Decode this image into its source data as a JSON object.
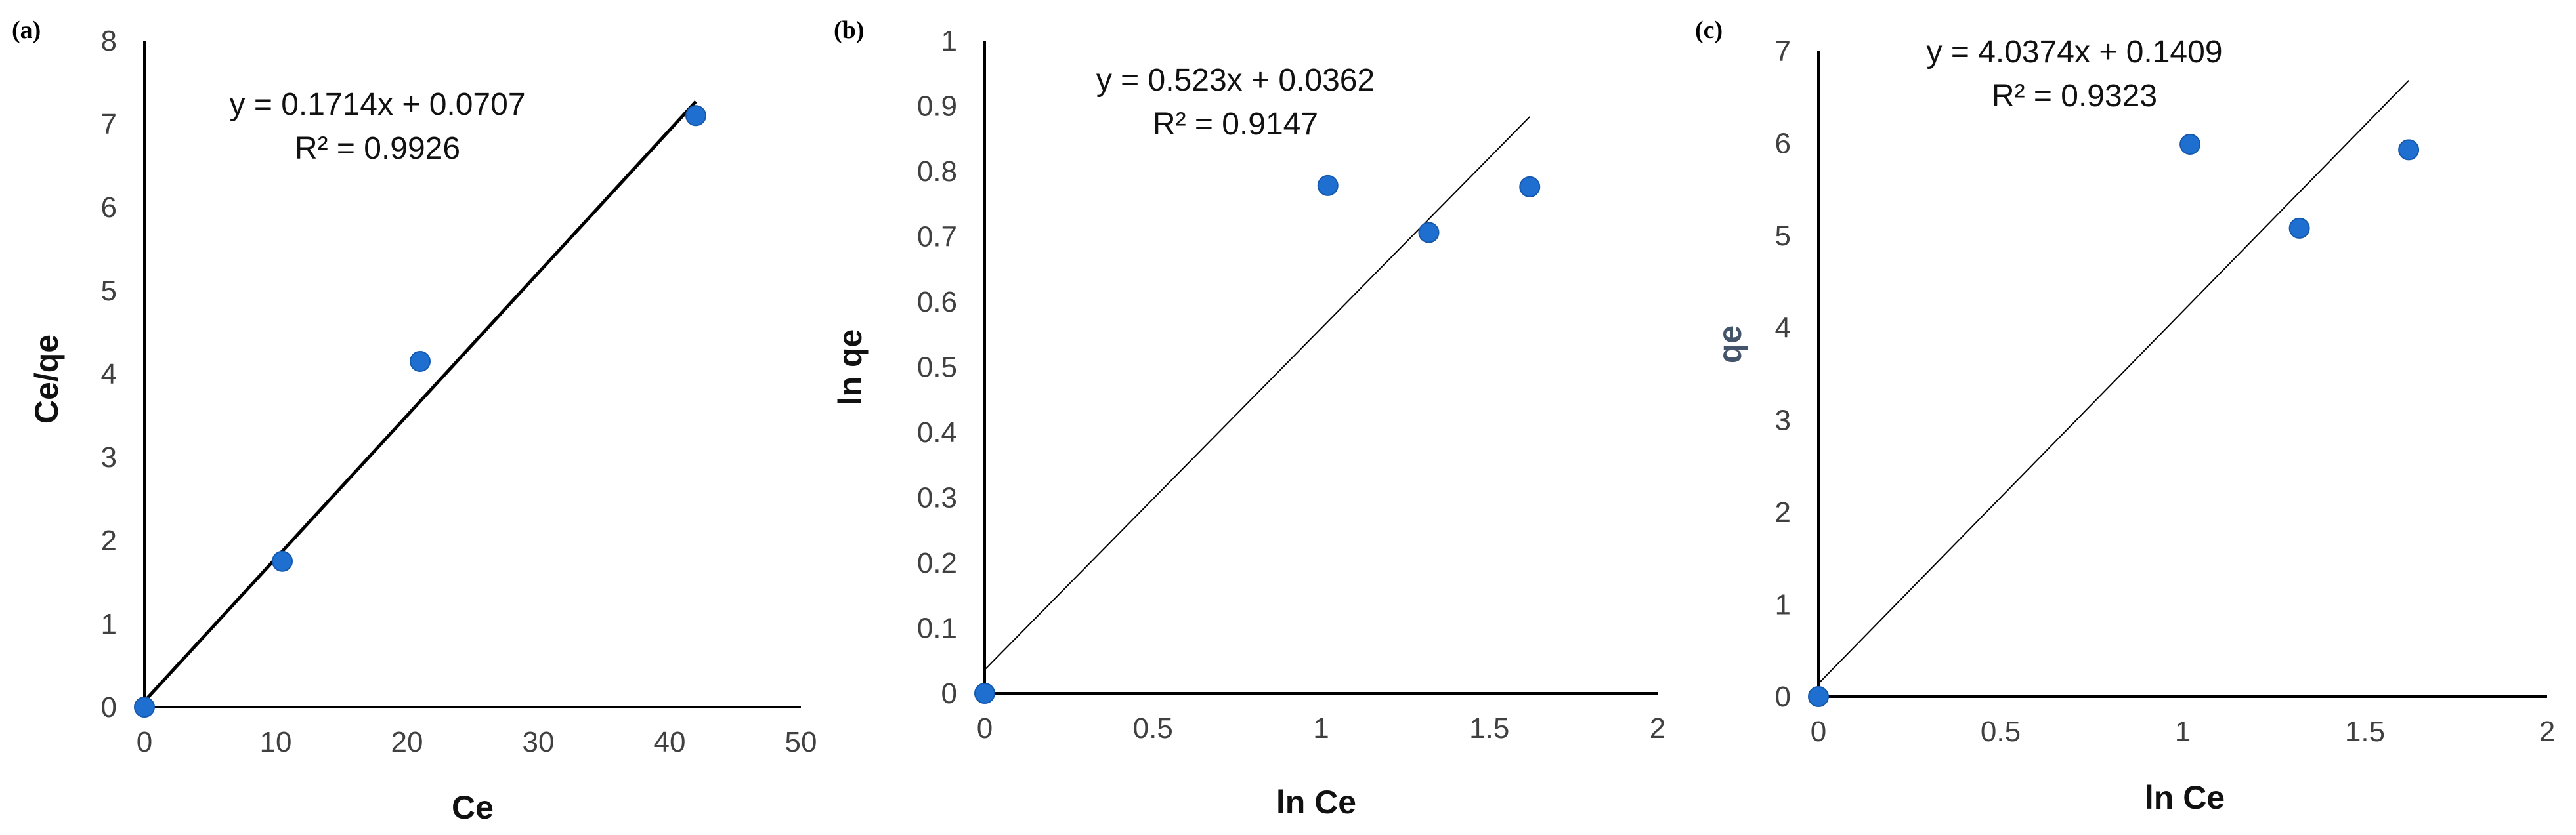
{
  "colors": {
    "point": "#1f6fd1",
    "point_edge": "#1559ad",
    "axis": "#000000",
    "trendline": "#000000",
    "tick_text": "#404040"
  },
  "chart_data": [
    {
      "type": "scatter",
      "panel_label": "(a)",
      "xlabel": "Ce",
      "ylabel": "Ce/qe",
      "xlim": [
        0,
        50
      ],
      "ylim": [
        0,
        8
      ],
      "xticks": [
        0,
        10,
        20,
        30,
        40,
        50
      ],
      "yticks": [
        0,
        1,
        2,
        3,
        4,
        5,
        6,
        7,
        8
      ],
      "xtick_labels": [
        "0",
        "10",
        "20",
        "30",
        "40",
        "50"
      ],
      "ytick_labels": [
        "0",
        "1",
        "2",
        "3",
        "4",
        "5",
        "6",
        "7",
        "8"
      ],
      "points": [
        {
          "x": 0,
          "y": 0
        },
        {
          "x": 10.5,
          "y": 1.75
        },
        {
          "x": 21,
          "y": 4.15
        },
        {
          "x": 42,
          "y": 7.1
        }
      ],
      "trendline": {
        "slope": 0.1714,
        "intercept": 0.0707,
        "x_range": [
          0,
          42
        ]
      },
      "equation": "y = 0.1714x + 0.0707",
      "r2_label": "R² = 0.9926"
    },
    {
      "type": "scatter",
      "panel_label": "(b)",
      "xlabel": "ln Ce",
      "ylabel": "ln qe",
      "xlim": [
        0,
        2
      ],
      "ylim": [
        0,
        1
      ],
      "xticks": [
        0,
        0.5,
        1,
        1.5,
        2
      ],
      "yticks": [
        0,
        0.1,
        0.2,
        0.3,
        0.4,
        0.5,
        0.6,
        0.7,
        0.8,
        0.9,
        1
      ],
      "xtick_labels": [
        "0",
        "0.5",
        "1",
        "1.5",
        "2"
      ],
      "ytick_labels": [
        "0",
        "0.1",
        "0.2",
        "0.3",
        "0.4",
        "0.5",
        "0.6",
        "0.7",
        "0.8",
        "0.9",
        "1"
      ],
      "points": [
        {
          "x": 0,
          "y": 0
        },
        {
          "x": 1.02,
          "y": 0.778
        },
        {
          "x": 1.32,
          "y": 0.706
        },
        {
          "x": 1.62,
          "y": 0.776
        }
      ],
      "trendline": {
        "slope": 0.523,
        "intercept": 0.0362,
        "x_range": [
          0,
          1.62
        ]
      },
      "equation": "y = 0.523x + 0.0362",
      "r2_label": "R² = 0.9147"
    },
    {
      "type": "scatter",
      "panel_label": "(c)",
      "xlabel": "ln Ce",
      "ylabel": "qe",
      "xlim": [
        0,
        2
      ],
      "ylim": [
        0,
        7
      ],
      "xticks": [
        0,
        0.5,
        1,
        1.5,
        2
      ],
      "yticks": [
        0,
        1,
        2,
        3,
        4,
        5,
        6,
        7
      ],
      "xtick_labels": [
        "0",
        "0.5",
        "1",
        "1.5",
        "2"
      ],
      "ytick_labels": [
        "0",
        "1",
        "2",
        "3",
        "4",
        "5",
        "6",
        "7"
      ],
      "points": [
        {
          "x": 0,
          "y": 0
        },
        {
          "x": 1.02,
          "y": 5.99
        },
        {
          "x": 1.32,
          "y": 5.08
        },
        {
          "x": 1.62,
          "y": 5.93
        }
      ],
      "trendline": {
        "slope": 4.0374,
        "intercept": 0.1409,
        "x_range": [
          0,
          1.62
        ]
      },
      "equation": "y = 4.0374x + 0.1409",
      "r2_label": "R² = 0.9323"
    }
  ]
}
